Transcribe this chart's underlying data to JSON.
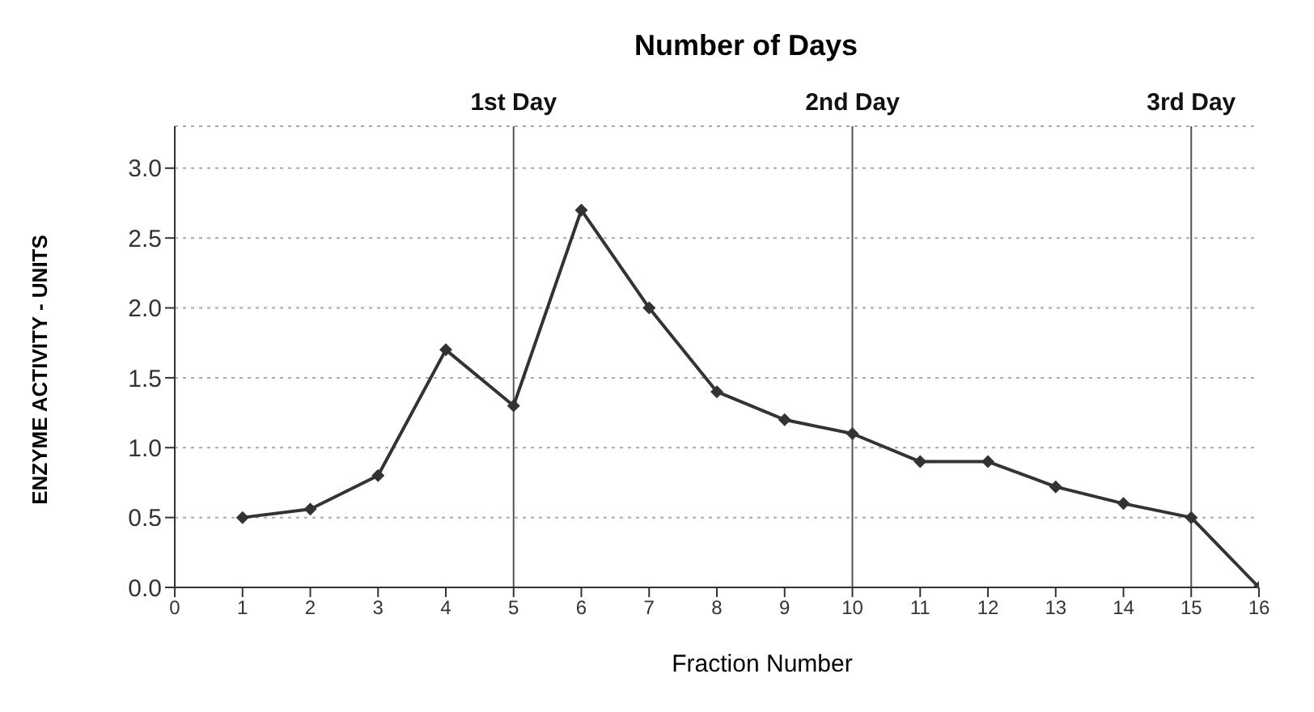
{
  "chart_data": {
    "type": "line",
    "title": "Number of Days",
    "xlabel": "Fraction Number",
    "ylabel": "ENZYME ACTIVITY - UNITS",
    "x": [
      1,
      2,
      3,
      4,
      5,
      6,
      7,
      8,
      9,
      10,
      11,
      12,
      13,
      14,
      15,
      16
    ],
    "series": [
      {
        "color": "#333333",
        "values": [
          0.5,
          0.56,
          0.8,
          1.7,
          1.3,
          2.7,
          2.0,
          1.4,
          1.2,
          1.1,
          0.9,
          0.9,
          0.72,
          0.6,
          0.5,
          0.0
        ]
      }
    ],
    "xlim": [
      0,
      16
    ],
    "xticks": [
      0,
      1,
      2,
      3,
      4,
      5,
      6,
      7,
      8,
      9,
      10,
      11,
      12,
      13,
      14,
      15,
      16
    ],
    "ylim": [
      0,
      3.3
    ],
    "yticks": [
      {
        "value": 0,
        "label": "0.0"
      },
      0.5,
      {
        "value": 1,
        "label": "1.0"
      },
      1.5,
      {
        "value": 2,
        "label": "2.0"
      },
      2.5,
      {
        "value": 3,
        "label": "3.0"
      }
    ],
    "ref_lines": [
      {
        "axis": "x",
        "value": 5,
        "label": "1st Day",
        "color": "#555555"
      },
      {
        "axis": "x",
        "value": 10,
        "label": "2nd Day",
        "color": "#555555"
      },
      {
        "axis": "x",
        "value": 15,
        "label": "3rd Day",
        "color": "#555555"
      }
    ],
    "grid": "y",
    "marker": "diamond",
    "line_style": "solid",
    "legend": false
  }
}
